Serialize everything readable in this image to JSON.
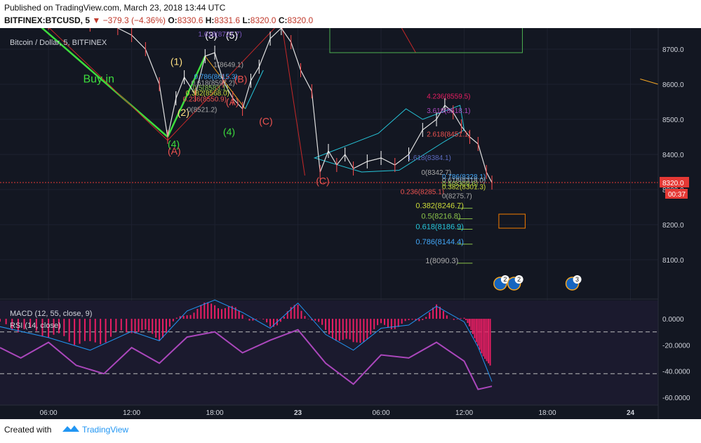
{
  "header": {
    "published": "Published on TradingView.com, March 23, 2018 13:44 UTC",
    "symbol": "BITFINEX:BTCUSD, 5",
    "change": "−379.3 (−4.36%)",
    "o_label": "O:",
    "o_value": "8330.6",
    "h_label": "H:",
    "h_value": "8331.6",
    "l_label": "L:",
    "l_value": "8320.0",
    "c_label": "C:",
    "c_value": "8320.0"
  },
  "footer": {
    "created": "Created with",
    "brand": "TradingView"
  },
  "colors": {
    "background": "#131722",
    "up": "#ffffff",
    "down": "#ff0000",
    "accent": "#e53935",
    "macd": "#e91e63",
    "rsi": "#9c27b0"
  },
  "chart_data": [
    {
      "type": "line",
      "title": "Bitcoin / Dollar, 5, BITFINEX",
      "price_label": "8320.0",
      "countdown_label": "00:37",
      "ylim": [
        8000,
        8760
      ],
      "y_ticks": [
        "8700.0",
        "8600.0",
        "8500.0",
        "8400.0",
        "8300.0",
        "8200.0",
        "8100.0"
      ],
      "y_tick_values": [
        8700,
        8600,
        8500,
        8400,
        8300,
        8200,
        8100
      ],
      "x_ticks": [
        "06:00",
        "12:00",
        "18:00",
        "23",
        "06:00",
        "12:00",
        "18:00",
        "24"
      ],
      "x_tick_values": [
        6,
        12,
        18,
        24,
        30,
        36,
        42,
        48
      ],
      "xlim": [
        2.5,
        50
      ],
      "series": [
        {
          "x": [
            2.5,
            4,
            5,
            6,
            7,
            8,
            9,
            10,
            11,
            12,
            13,
            14,
            14.6,
            15.2,
            15.8,
            16.6,
            17.3,
            18,
            18.6,
            19.3,
            20,
            20.6,
            21.2,
            22,
            22.8,
            23.5,
            24.2,
            25,
            25.6,
            26.2,
            26.8,
            27.4,
            28,
            29,
            30,
            31,
            32,
            33,
            34,
            34.6,
            35.2,
            35.8,
            36.4,
            37,
            37.6,
            38
          ],
          "values": [
            8790,
            8800,
            8790,
            8775,
            8790,
            8780,
            8770,
            8790,
            8760,
            8740,
            8700,
            8600,
            8450,
            8560,
            8620,
            8570,
            8680,
            8690,
            8610,
            8560,
            8530,
            8610,
            8650,
            8730,
            8760,
            8720,
            8640,
            8580,
            8350,
            8410,
            8370,
            8400,
            8360,
            8380,
            8390,
            8370,
            8400,
            8470,
            8500,
            8540,
            8520,
            8480,
            8450,
            8430,
            8350,
            8320
          ]
        }
      ],
      "annotations": [
        "Buy in",
        "(1)",
        "(2)",
        "(3)",
        "(4)",
        "(5)",
        "(A)",
        "(B)",
        "(C)",
        "(C)",
        "(4)",
        "(A)",
        "1.618(8727.7)",
        "0.786(8615.3)",
        "0.618(8597.2)",
        "0.5(8583.1)",
        "0.382(8568.0)",
        "0.236(8550.9)",
        "0(8521.2)",
        "1(8649.1)",
        "4.236(8559.5)",
        "3.618(8518.1)",
        "2.618(8451.1)",
        "1.618(8384.1)",
        "0(8342.7)",
        "0.786(8328.1)",
        "0.618(8318.0)",
        "0.5(8309.6)",
        "0.382(8301.3)",
        "0.236(8285.1)",
        "0(8275.7)",
        "0.382(8246.7)",
        "0.5(8216.8)",
        "0.618(8186.9)",
        "0.786(8144.4)",
        "1(8090.3)"
      ],
      "events": [
        "2",
        "2",
        "3"
      ]
    },
    {
      "type": "line",
      "title": "MACD (12, 55, close, 9)",
      "ylim": [
        -66,
        14
      ],
      "y_ticks": [
        "0.0000",
        "-20.0000",
        "-40.0000",
        "-60.0000"
      ],
      "y_tick_values": [
        0,
        -20,
        -40,
        -60
      ],
      "series": [
        {
          "x": [
            2.5,
            6,
            9,
            12,
            14,
            16,
            18,
            20,
            22,
            24,
            26,
            28,
            30,
            32,
            34,
            36,
            37,
            38
          ],
          "values": [
            -5,
            -12,
            -20,
            -8,
            -14,
            5,
            12,
            4,
            -6,
            10,
            -10,
            -20,
            -6,
            -4,
            8,
            -2,
            -18,
            -40
          ]
        }
      ]
    },
    {
      "type": "line",
      "title": "RSI (14, close)",
      "series": [
        {
          "x": [
            2.5,
            4,
            6,
            8,
            10,
            12,
            14,
            16,
            18,
            20,
            22,
            24,
            26,
            28,
            30,
            32,
            34,
            36,
            37,
            38
          ],
          "values": [
            55,
            45,
            60,
            38,
            30,
            55,
            40,
            65,
            70,
            50,
            62,
            72,
            40,
            20,
            48,
            45,
            60,
            42,
            15,
            18
          ]
        }
      ]
    }
  ]
}
